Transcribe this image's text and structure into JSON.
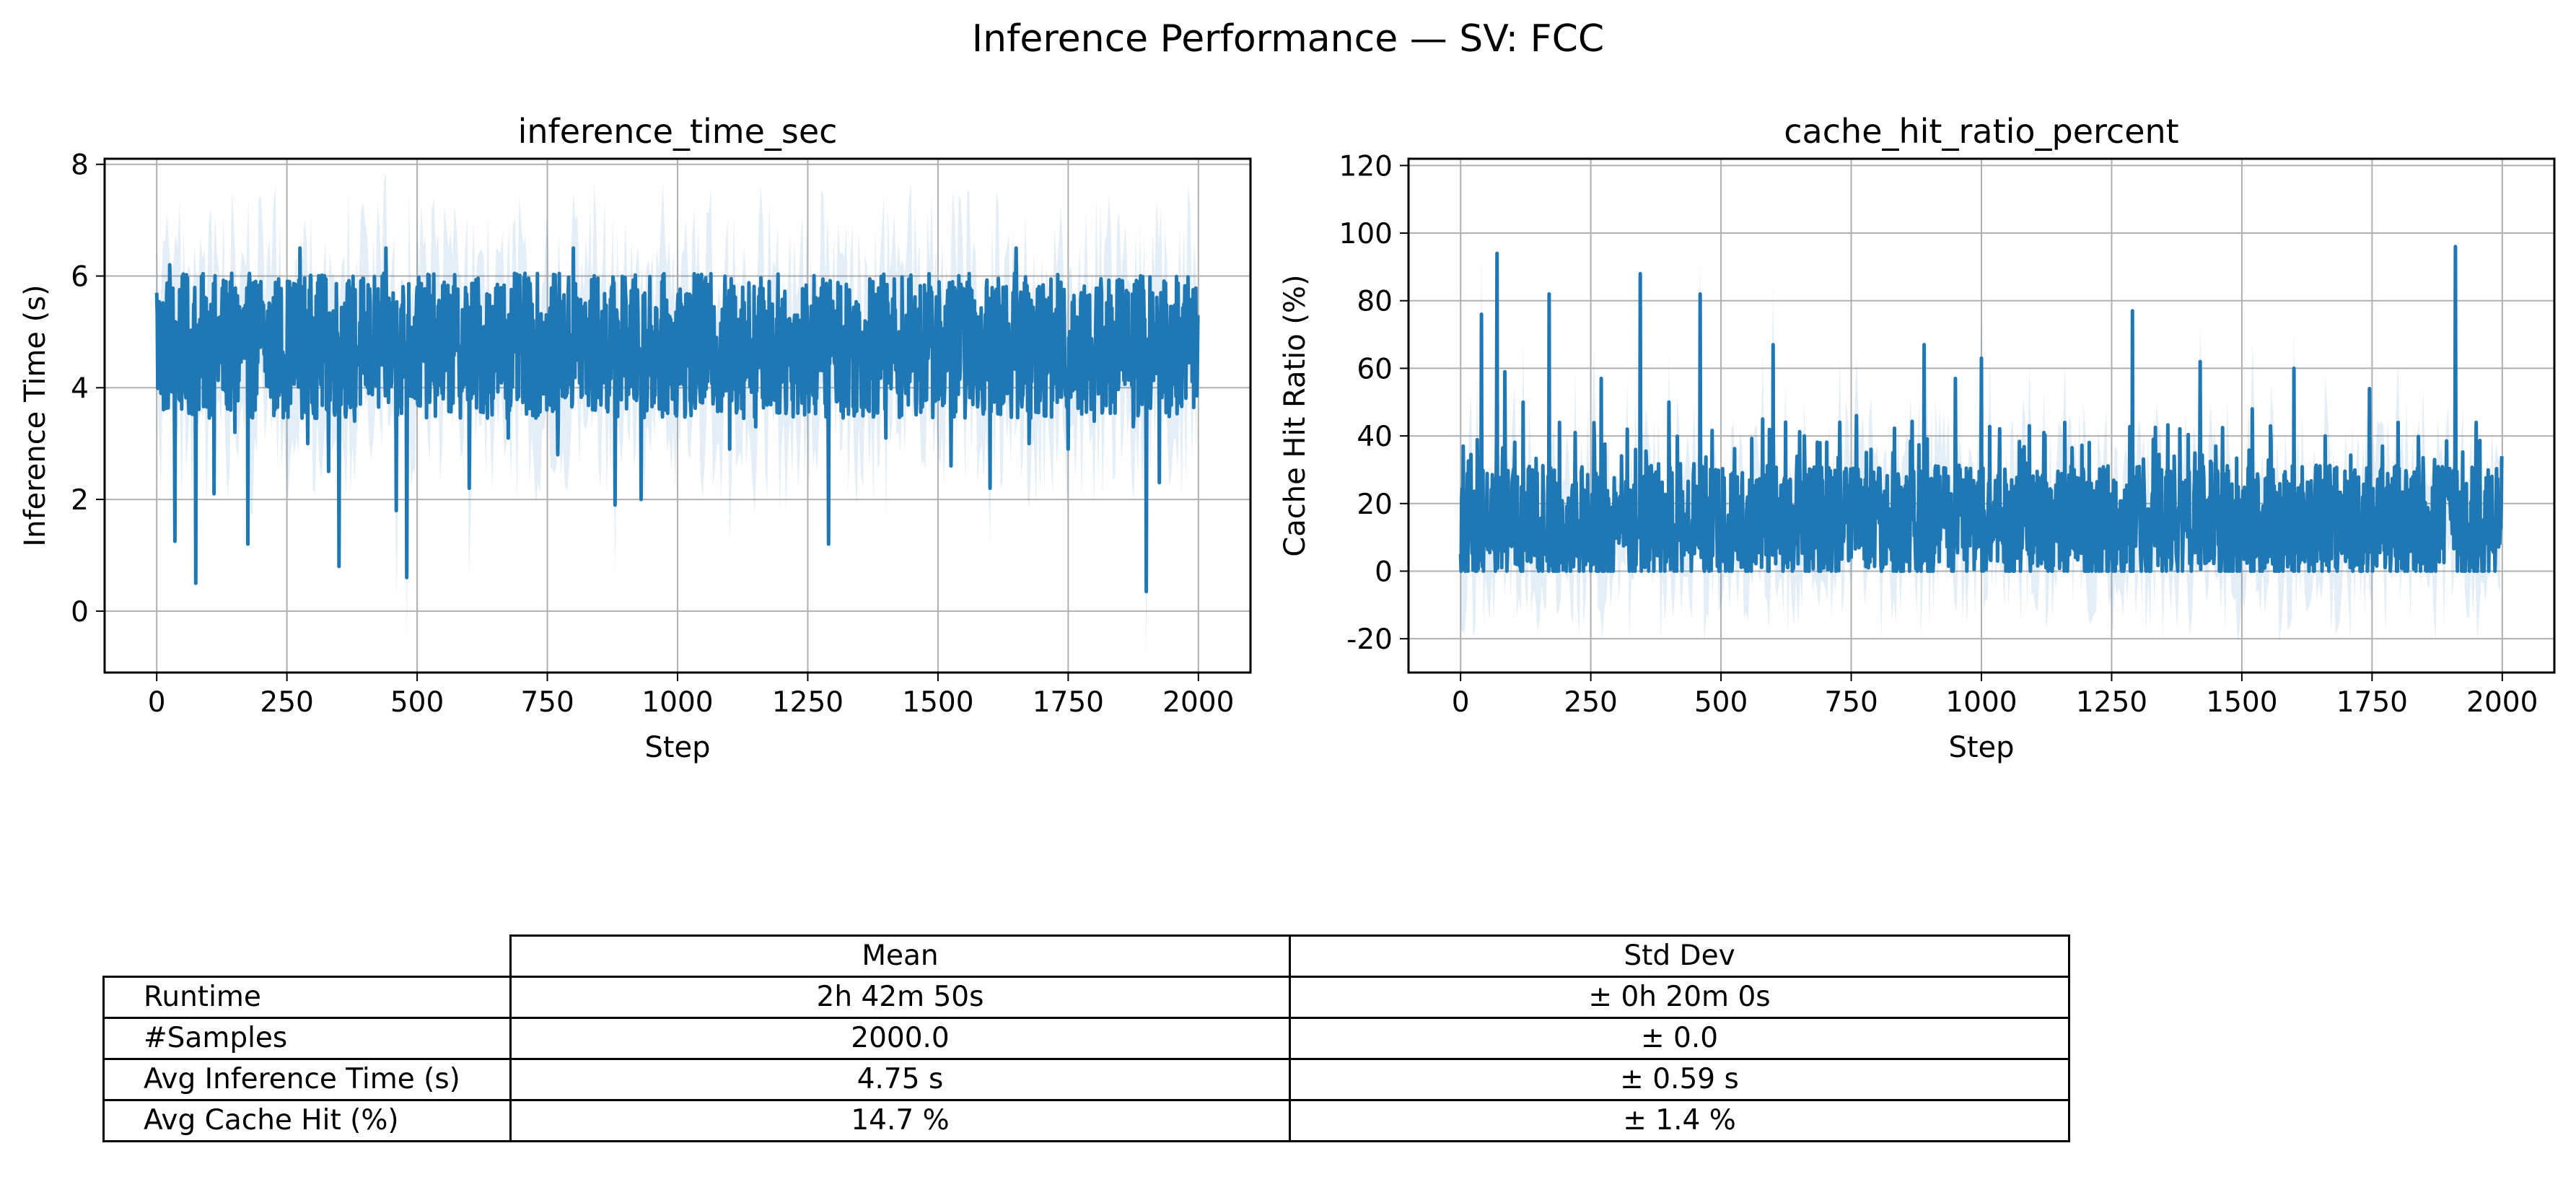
{
  "figure": {
    "title": "Inference Performance — SV: FCC"
  },
  "chart_data": [
    {
      "type": "line",
      "title": "inference_time_sec",
      "xlabel": "Step",
      "ylabel": "Inference Time (s)",
      "xlim": [
        -100,
        2100
      ],
      "ylim": [
        -1.1,
        8.1
      ],
      "xticks": [
        0,
        250,
        500,
        750,
        1000,
        1250,
        1500,
        1750,
        2000
      ],
      "yticks": [
        0,
        2,
        4,
        6,
        8
      ],
      "grid": true,
      "series_color": "#1f77b4",
      "band": "mean ± std shaded band",
      "n_points": 2000,
      "series": [
        {
          "x": [
            0,
            25,
            35,
            50,
            75,
            95,
            110,
            125,
            150,
            175,
            200,
            225,
            250,
            275,
            290,
            310,
            330,
            350,
            380,
            410,
            440,
            460,
            480,
            500,
            525,
            550,
            575,
            600,
            625,
            650,
            675,
            700,
            725,
            750,
            770,
            800,
            825,
            850,
            880,
            900,
            930,
            950,
            975,
            1000,
            1025,
            1050,
            1075,
            1100,
            1125,
            1150,
            1175,
            1200,
            1225,
            1250,
            1275,
            1290,
            1310,
            1325,
            1350,
            1375,
            1400,
            1425,
            1450,
            1475,
            1500,
            1525,
            1550,
            1575,
            1600,
            1625,
            1650,
            1675,
            1700,
            1725,
            1750,
            1775,
            1800,
            1825,
            1850,
            1875,
            1890,
            1900,
            1910,
            1925,
            1950,
            1975,
            2000
          ],
          "y": [
            5.7,
            6.2,
            1.25,
            5.8,
            0.5,
            5.6,
            2.1,
            5.4,
            3.2,
            1.2,
            5.9,
            3.5,
            4.0,
            6.5,
            3.0,
            4.2,
            2.5,
            0.8,
            3.4,
            5.5,
            6.5,
            1.8,
            0.6,
            5.8,
            4.1,
            3.8,
            5.4,
            2.2,
            4.6,
            5.0,
            3.1,
            5.2,
            4.3,
            4.1,
            2.8,
            6.5,
            3.9,
            5.2,
            1.9,
            5.7,
            2.0,
            5.1,
            4.2,
            5.5,
            3.8,
            4.6,
            4.9,
            2.9,
            5.8,
            3.3,
            4.4,
            4.1,
            5.3,
            3.9,
            4.7,
            1.2,
            5.6,
            3.8,
            4.6,
            5.9,
            3.1,
            5.0,
            4.3,
            5.3,
            3.9,
            2.6,
            5.4,
            4.0,
            2.2,
            5.8,
            6.5,
            3.0,
            5.1,
            4.2,
            2.9,
            5.7,
            3.4,
            4.9,
            5.2,
            3.3,
            4.5,
            0.35,
            5.3,
            2.3,
            4.8,
            5.8,
            5.3
          ]
        }
      ]
    },
    {
      "type": "line",
      "title": "cache_hit_ratio_percent",
      "xlabel": "Step",
      "ylabel": "Cache Hit Ratio (%)",
      "xlim": [
        -100,
        2100
      ],
      "ylim": [
        -30,
        122
      ],
      "xticks": [
        0,
        250,
        500,
        750,
        1000,
        1250,
        1500,
        1750,
        2000
      ],
      "yticks": [
        -20,
        0,
        20,
        40,
        60,
        80,
        100,
        120
      ],
      "grid": true,
      "series_color": "#1f77b4",
      "band": "mean ± std shaded band",
      "n_points": 2000,
      "series": [
        {
          "x": [
            0,
            5,
            25,
            40,
            55,
            70,
            85,
            100,
            120,
            140,
            170,
            190,
            220,
            245,
            270,
            300,
            320,
            345,
            360,
            400,
            430,
            460,
            490,
            520,
            550,
            580,
            600,
            630,
            660,
            690,
            730,
            760,
            800,
            830,
            860,
            890,
            920,
            950,
            1000,
            1040,
            1080,
            1120,
            1160,
            1200,
            1240,
            1290,
            1330,
            1370,
            1420,
            1450,
            1480,
            1520,
            1560,
            1600,
            1630,
            1660,
            1700,
            1745,
            1770,
            1800,
            1840,
            1870,
            1900,
            1910,
            1920,
            1950,
            1980,
            2000
          ],
          "y": [
            5,
            37,
            22,
            76,
            10,
            94,
            59,
            28,
            50,
            8,
            82,
            44,
            41,
            12,
            57,
            18,
            42,
            88,
            24,
            50,
            15,
            82,
            30,
            20,
            20,
            45,
            67,
            25,
            40,
            38,
            15,
            46,
            25,
            35,
            20,
            67,
            28,
            57,
            63,
            18,
            36,
            41,
            44,
            20,
            30,
            77,
            39,
            34,
            62,
            37,
            12,
            48,
            30,
            60,
            25,
            40,
            22,
            54,
            37,
            44,
            30,
            33,
            20,
            96,
            18,
            44,
            28,
            34
          ]
        }
      ]
    }
  ],
  "table": {
    "headers": [
      "Mean",
      "Std Dev"
    ],
    "rows": [
      {
        "label": "Runtime",
        "mean": "2h 42m 50s",
        "std": "± 0h 20m 0s"
      },
      {
        "label": "#Samples",
        "mean": "2000.0",
        "std": "± 0.0"
      },
      {
        "label": "Avg Inference Time (s)",
        "mean": "4.75 s",
        "std": "± 0.59 s"
      },
      {
        "label": "Avg Cache Hit (%)",
        "mean": "14.7 %",
        "std": "± 1.4 %"
      }
    ]
  }
}
